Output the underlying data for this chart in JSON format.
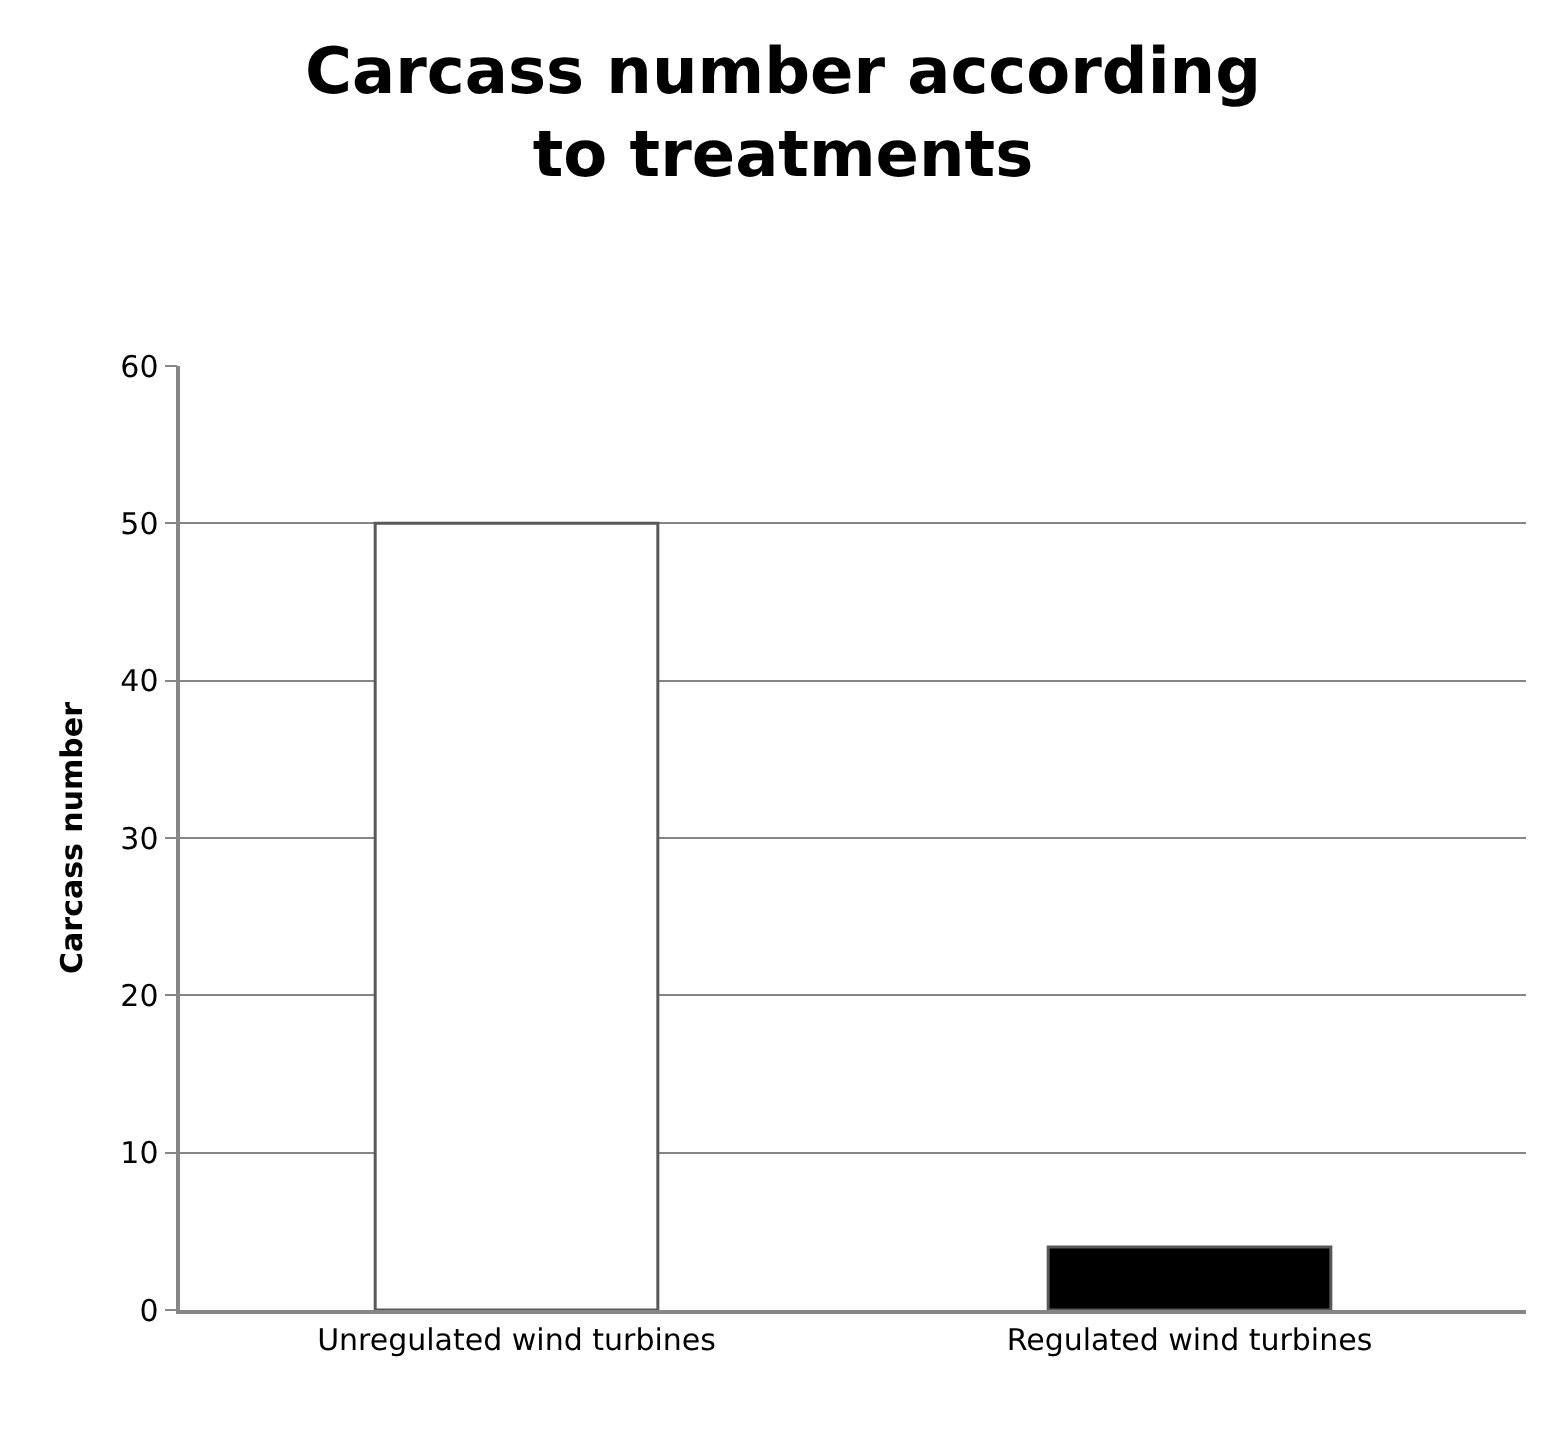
{
  "chart_data": {
    "type": "bar",
    "title": "Carcass number according to treatments",
    "ylabel": "Carcass number",
    "categories": [
      "Unregulated wind turbines",
      "Regulated wind turbines"
    ],
    "values": [
      50,
      4
    ],
    "colors": [
      "#ffffff",
      "#000000"
    ],
    "ylim": [
      0,
      60
    ],
    "yticks": [
      0,
      10,
      20,
      30,
      40,
      50,
      60
    ],
    "grid": "y"
  }
}
